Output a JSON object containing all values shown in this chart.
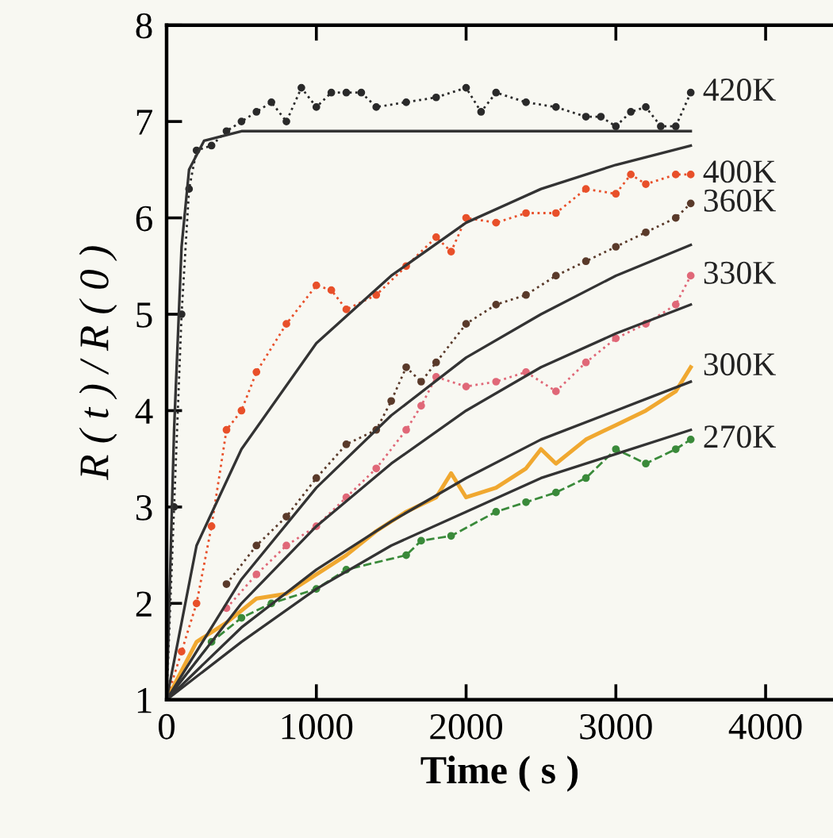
{
  "chart_data": {
    "type": "line",
    "xlabel": "Time ( s )",
    "ylabel": "R ( t ) / R ( 0 )",
    "xlim": [
      0,
      4450
    ],
    "ylim": [
      1,
      8
    ],
    "xticks": [
      0,
      1000,
      2000,
      3000,
      4000
    ],
    "yticks": [
      1,
      2,
      3,
      4,
      5,
      6,
      7,
      8
    ],
    "grid": false,
    "legend": false,
    "series": [
      {
        "name": "420K",
        "color": "#2a2a2a",
        "line_style": "dotted",
        "marker": "circle",
        "x": [
          0,
          50,
          100,
          150,
          200,
          300,
          400,
          500,
          600,
          700,
          800,
          900,
          1000,
          1100,
          1200,
          1300,
          1400,
          1600,
          1800,
          2000,
          2100,
          2200,
          2400,
          2600,
          2800,
          2900,
          3000,
          3100,
          3200,
          3300,
          3400,
          3500
        ],
        "values": [
          1,
          3,
          5,
          6.3,
          6.7,
          6.75,
          6.9,
          7.0,
          7.1,
          7.2,
          7.0,
          7.35,
          7.15,
          7.3,
          7.3,
          7.3,
          7.15,
          7.2,
          7.25,
          7.35,
          7.1,
          7.3,
          7.2,
          7.15,
          7.05,
          7.05,
          6.95,
          7.1,
          7.15,
          6.95,
          6.95,
          7.3
        ]
      },
      {
        "name": "400K",
        "color": "#e8502a",
        "line_style": "dotted",
        "marker": "circle",
        "x": [
          0,
          100,
          200,
          300,
          400,
          500,
          600,
          800,
          1000,
          1100,
          1200,
          1400,
          1600,
          1800,
          1900,
          2000,
          2200,
          2400,
          2600,
          2800,
          3000,
          3100,
          3200,
          3400,
          3500
        ],
        "values": [
          1,
          1.5,
          2,
          2.8,
          3.8,
          4,
          4.4,
          4.9,
          5.3,
          5.25,
          5.05,
          5.2,
          5.5,
          5.8,
          5.65,
          6,
          5.95,
          6.05,
          6.05,
          6.3,
          6.25,
          6.45,
          6.35,
          6.45,
          6.45
        ]
      },
      {
        "name": "360K",
        "color": "#5a3a2a",
        "line_style": "dotted",
        "marker": "circle",
        "x": [
          400,
          600,
          800,
          1000,
          1200,
          1400,
          1500,
          1600,
          1700,
          1800,
          2000,
          2200,
          2400,
          2600,
          2800,
          3000,
          3200,
          3400,
          3500
        ],
        "values": [
          2.2,
          2.6,
          2.9,
          3.3,
          3.65,
          3.8,
          4.1,
          4.45,
          4.3,
          4.5,
          4.9,
          5.1,
          5.2,
          5.4,
          5.55,
          5.7,
          5.85,
          6.0,
          6.15
        ]
      },
      {
        "name": "330K",
        "color": "#e06878",
        "line_style": "dotted",
        "marker": "circle",
        "x": [
          400,
          600,
          800,
          1000,
          1200,
          1400,
          1600,
          1700,
          1800,
          2000,
          2200,
          2400,
          2600,
          2800,
          3000,
          3200,
          3400,
          3500
        ],
        "values": [
          1.95,
          2.3,
          2.6,
          2.8,
          3.1,
          3.4,
          3.8,
          4.05,
          4.35,
          4.25,
          4.3,
          4.4,
          4.2,
          4.5,
          4.75,
          4.9,
          5.1,
          5.4
        ]
      },
      {
        "name": "300K",
        "color": "#f0a830",
        "line_style": "solid",
        "marker": "none",
        "x": [
          0,
          200,
          400,
          600,
          800,
          1000,
          1200,
          1400,
          1600,
          1800,
          1900,
          2000,
          2200,
          2400,
          2500,
          2600,
          2800,
          3000,
          3200,
          3400,
          3500
        ],
        "values": [
          1,
          1.6,
          1.8,
          2.05,
          2.1,
          2.3,
          2.5,
          2.75,
          2.95,
          3.1,
          3.35,
          3.1,
          3.2,
          3.4,
          3.6,
          3.45,
          3.7,
          3.85,
          4.0,
          4.2,
          4.45
        ]
      },
      {
        "name": "270K",
        "color": "#3a8a3a",
        "line_style": "dashed",
        "marker": "circle",
        "x": [
          0,
          300,
          500,
          700,
          1000,
          1200,
          1600,
          1700,
          1900,
          2200,
          2400,
          2600,
          2800,
          3000,
          3200,
          3400,
          3500
        ],
        "values": [
          1,
          1.6,
          1.85,
          2,
          2.15,
          2.35,
          2.5,
          2.65,
          2.7,
          2.95,
          3.05,
          3.15,
          3.3,
          3.6,
          3.45,
          3.6,
          3.7
        ]
      },
      {
        "color": "#333333",
        "line_style": "solid",
        "marker": "none",
        "x": [
          0,
          50,
          100,
          150,
          250,
          500,
          3500
        ],
        "values": [
          1,
          3.8,
          5.7,
          6.5,
          6.8,
          6.9,
          6.9
        ]
      },
      {
        "color": "#333333",
        "line_style": "solid",
        "marker": "none",
        "x": [
          0,
          200,
          500,
          1000,
          1500,
          2000,
          2500,
          3000,
          3500
        ],
        "values": [
          1,
          2.6,
          3.6,
          4.7,
          5.4,
          5.95,
          6.3,
          6.55,
          6.75
        ]
      },
      {
        "color": "#333333",
        "line_style": "solid",
        "marker": "none",
        "x": [
          0,
          500,
          1000,
          1500,
          2000,
          2500,
          3000,
          3500
        ],
        "values": [
          1,
          2.25,
          3.2,
          3.95,
          4.55,
          5.0,
          5.4,
          5.72
        ]
      },
      {
        "color": "#333333",
        "line_style": "solid",
        "marker": "none",
        "x": [
          0,
          500,
          1000,
          1500,
          2000,
          2500,
          3000,
          3500
        ],
        "values": [
          1,
          2.0,
          2.8,
          3.45,
          4.0,
          4.45,
          4.8,
          5.1
        ]
      },
      {
        "color": "#333333",
        "line_style": "solid",
        "marker": "none",
        "x": [
          0,
          500,
          1000,
          1500,
          2000,
          2500,
          3000,
          3500
        ],
        "values": [
          1,
          1.75,
          2.35,
          2.85,
          3.3,
          3.7,
          4.0,
          4.3
        ]
      },
      {
        "color": "#333333",
        "line_style": "solid",
        "marker": "none",
        "x": [
          0,
          500,
          1000,
          1500,
          2000,
          2500,
          3000,
          3500
        ],
        "values": [
          1,
          1.6,
          2.15,
          2.6,
          2.95,
          3.3,
          3.55,
          3.8
        ]
      }
    ]
  }
}
